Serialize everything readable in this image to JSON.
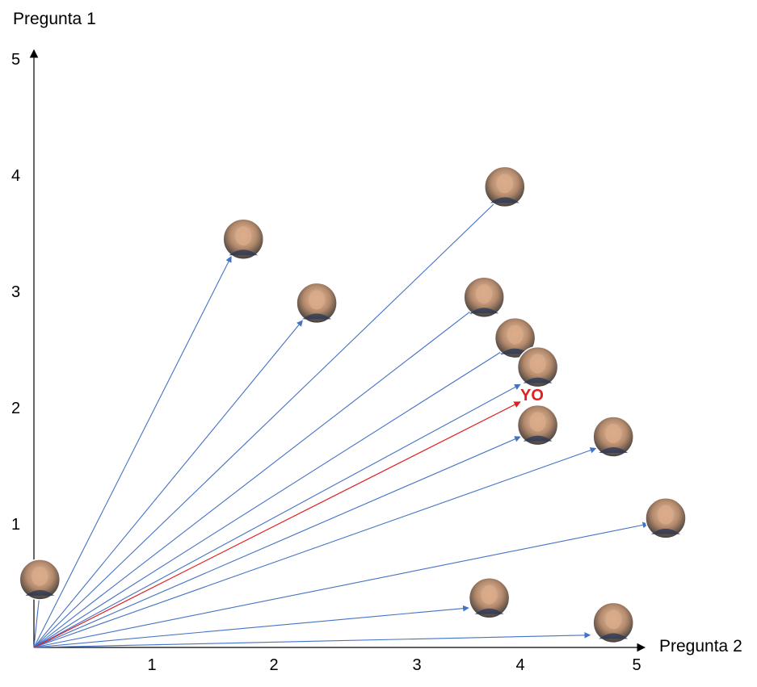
{
  "chart_data": {
    "type": "scatter",
    "xlabel": "Pregunta 2",
    "ylabel": "Pregunta 1",
    "x_ticks": [
      1,
      2,
      3,
      4,
      5
    ],
    "y_ticks": [
      1,
      2,
      3,
      4,
      5
    ],
    "vector_origin": [
      0,
      0
    ],
    "you_label": "YO",
    "colors": {
      "vector": "#4472c4",
      "you_vector": "#e02020",
      "you_label": "#e02020"
    },
    "points": [
      {
        "x": 0.05,
        "y": 0.55,
        "vector_to": [
          0.05,
          0.45
        ]
      },
      {
        "x": 1.75,
        "y": 3.45,
        "vector_to": [
          1.65,
          3.3
        ]
      },
      {
        "x": 2.3,
        "y": 2.9,
        "vector_to": [
          2.2,
          2.75
        ]
      },
      {
        "x": 3.85,
        "y": 3.9,
        "vector_to": [
          3.8,
          3.8
        ]
      },
      {
        "x": 3.65,
        "y": 2.95,
        "vector_to": [
          3.55,
          2.85
        ]
      },
      {
        "x": 3.95,
        "y": 2.6,
        "vector_to": [
          3.85,
          2.5
        ]
      },
      {
        "x": 4.15,
        "y": 2.35,
        "vector_to": [
          4.0,
          2.2
        ]
      },
      {
        "x": 4.15,
        "y": 1.85,
        "vector_to": [
          4.0,
          1.75
        ]
      },
      {
        "x": 4.8,
        "y": 1.75,
        "vector_to": [
          4.65,
          1.65
        ]
      },
      {
        "x": 5.25,
        "y": 1.05,
        "vector_to": [
          5.1,
          1.0
        ]
      },
      {
        "x": 3.7,
        "y": 0.4,
        "vector_to": [
          3.5,
          0.32
        ]
      },
      {
        "x": 4.8,
        "y": 0.2,
        "vector_to": [
          4.6,
          0.1
        ]
      }
    ],
    "you": {
      "x": 4.0,
      "y": 2.05
    }
  }
}
